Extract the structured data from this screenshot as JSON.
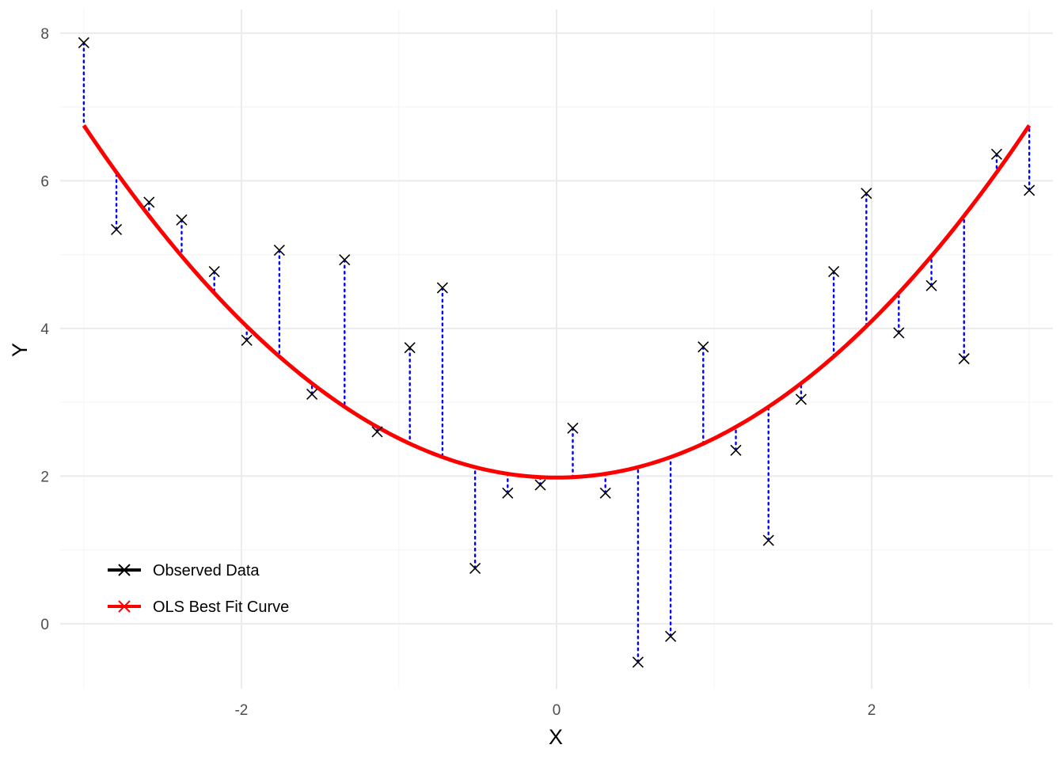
{
  "chart_data": {
    "type": "scatter",
    "title": "",
    "xlabel": "X",
    "ylabel": "Y",
    "xlim": [
      -3.15,
      3.15
    ],
    "ylim": [
      -0.88,
      8.32
    ],
    "x_major_ticks": [
      -2,
      0,
      2
    ],
    "x_major_tick_labels": [
      "-2",
      "0",
      "2"
    ],
    "x_minor_ticks": [
      -3,
      -1,
      1,
      3
    ],
    "y_major_ticks": [
      0,
      2,
      4,
      6,
      8
    ],
    "y_major_tick_labels": [
      "0",
      "2",
      "4",
      "6",
      "8"
    ],
    "y_minor_ticks": [
      1,
      3,
      5,
      7
    ],
    "grid": true,
    "legend_position": "bottom-left",
    "colors": {
      "observed": "#000000",
      "fit": "#ff0000",
      "residual": "#0000ff",
      "grid_major": "#ebebeb",
      "grid_minor": "#f5f5f5"
    },
    "series": [
      {
        "name": "Observed Data",
        "marker": "x",
        "x": [
          -3.0,
          -2.793,
          -2.586,
          -2.379,
          -2.172,
          -1.966,
          -1.759,
          -1.552,
          -1.345,
          -1.138,
          -0.931,
          -0.724,
          -0.517,
          -0.31,
          -0.103,
          0.103,
          0.31,
          0.517,
          0.724,
          0.931,
          1.138,
          1.345,
          1.552,
          1.759,
          1.966,
          2.172,
          2.379,
          2.586,
          2.793,
          3.0
        ],
        "y": [
          7.87,
          5.34,
          5.71,
          5.47,
          4.77,
          3.84,
          5.06,
          3.11,
          4.93,
          2.6,
          3.74,
          4.55,
          0.75,
          1.77,
          1.88,
          2.65,
          1.77,
          -0.52,
          -0.17,
          3.75,
          2.35,
          1.13,
          3.04,
          4.77,
          5.83,
          3.94,
          4.58,
          3.59,
          6.36,
          5.87
        ]
      },
      {
        "name": "OLS Best Fit Curve",
        "type": "line",
        "model": "quadratic",
        "coefficients": {
          "intercept": 1.98,
          "linear": 0.0,
          "quadratic": 0.53
        }
      }
    ],
    "residual_lines": true
  }
}
